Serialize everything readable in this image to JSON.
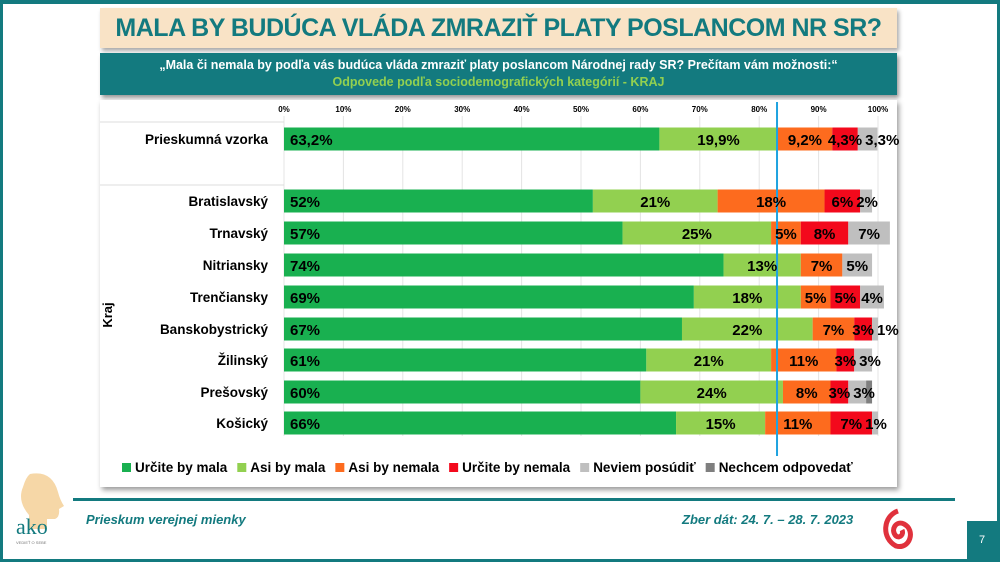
{
  "header": {
    "title": "MALA BY BUDÚCA VLÁDA ZMRAZIŤ PLATY POSLANCOM NR SR?",
    "question": "„Mala či nemala by podľa vás budúca vláda zmraziť platy poslancom Národnej rady SR? Prečítam vám možnosti:“",
    "subtitle": "Odpovede podľa sociodemografických kategórií - KRAJ"
  },
  "chart_data": {
    "type": "bar",
    "orientation": "horizontal",
    "stacked": true,
    "xlim": [
      0,
      100
    ],
    "xticks": [
      "0%",
      "10%",
      "20%",
      "30%",
      "40%",
      "50%",
      "60%",
      "70%",
      "80%",
      "90%",
      "100%"
    ],
    "ylabel": "Kraj",
    "legend_position": "bottom",
    "reference_line_x": 83,
    "categories": [
      "Prieskumná vzorka",
      "Bratislavský",
      "Trnavský",
      "Nitriansky",
      "Trenčiansky",
      "Banskobystrický",
      "Žilinský",
      "Prešovský",
      "Košický"
    ],
    "series": [
      {
        "name": "Určite by mala",
        "color": "#19b050",
        "values": [
          63.2,
          52,
          57,
          74,
          69,
          67,
          61,
          60,
          66
        ],
        "labels": [
          "63,2%",
          "52%",
          "57%",
          "74%",
          "69%",
          "67%",
          "61%",
          "60%",
          "66%"
        ]
      },
      {
        "name": "Asi by mala",
        "color": "#92d050",
        "values": [
          19.9,
          21,
          25,
          13,
          18,
          22,
          21,
          24,
          15
        ],
        "labels": [
          "19,9%",
          "21%",
          "25%",
          "13%",
          "18%",
          "22%",
          "21%",
          "24%",
          "15%"
        ]
      },
      {
        "name": "Asi by nemala",
        "color": "#fd6b1e",
        "values": [
          9.2,
          18,
          5,
          7,
          5,
          7,
          11,
          8,
          11
        ],
        "labels": [
          "9,2%",
          "18%",
          "5%",
          "7%",
          "5%",
          "7%",
          "11%",
          "8%",
          "11%"
        ]
      },
      {
        "name": "Určite by nemala",
        "color": "#f3091c",
        "values": [
          4.3,
          6,
          8,
          0,
          5,
          3,
          3,
          3,
          7
        ],
        "labels": [
          "4,3%",
          "6%",
          "8%",
          "",
          "5%",
          "3%",
          "3%",
          "3%",
          "7%"
        ]
      },
      {
        "name": "Neviem posúdiť",
        "color": "#bfbfbf",
        "values": [
          3.3,
          2,
          7,
          5,
          4,
          1,
          3,
          3,
          1
        ],
        "labels": [
          "3,3%",
          "2%",
          "7%",
          "5%",
          "4%",
          "1%",
          "3%",
          "3%",
          "1%"
        ]
      },
      {
        "name": "Nechcem odpovedať",
        "color": "#7f7f7f",
        "values": [
          0,
          0,
          0,
          0,
          0,
          0,
          0,
          1,
          0
        ],
        "labels": [
          "",
          "",
          "",
          "",
          "",
          "",
          "",
          "",
          ""
        ]
      }
    ]
  },
  "footer": {
    "left": "Prieskum verejnej mienky",
    "right": "Zber dát: 24. 7. – 28. 7. 2023",
    "page": "7",
    "logo_text": "ako",
    "logo_tagline": "VEDIEŤ O SEBE"
  }
}
